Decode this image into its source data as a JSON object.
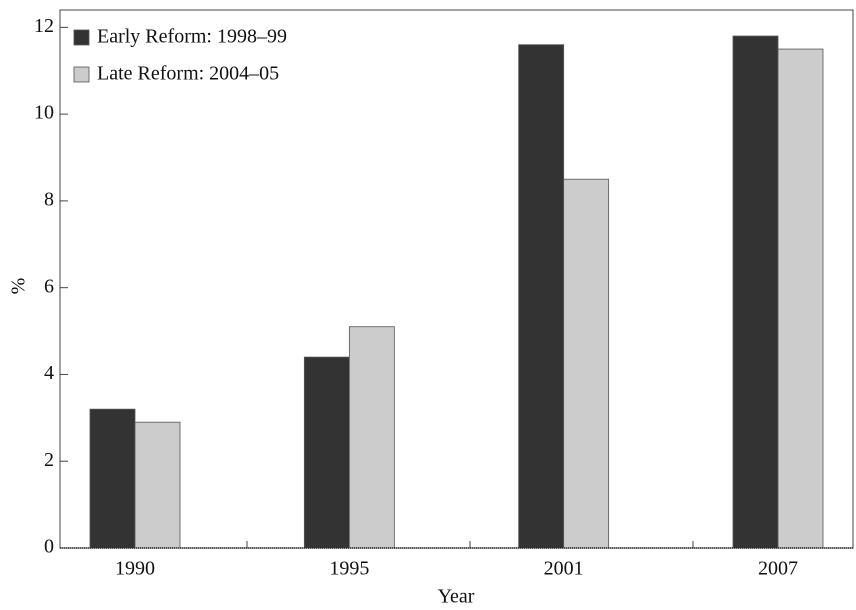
{
  "chart_data": {
    "type": "bar",
    "x_label": "Year",
    "y_label": "%",
    "categories": [
      "1990",
      "1995",
      "2001",
      "2007"
    ],
    "series": [
      {
        "name": "Early Reform: 1998–99",
        "color": "#333333",
        "values": [
          3.2,
          4.4,
          11.6,
          11.8
        ]
      },
      {
        "name": "Late Reform: 2004–05",
        "color": "#cccccc",
        "values": [
          2.9,
          5.1,
          8.5,
          11.5
        ]
      }
    ],
    "ylim": [
      0,
      12.4
    ],
    "yticks": [
      0,
      2,
      4,
      6,
      8,
      10,
      12
    ],
    "legend": "top-left",
    "grid": false
  }
}
